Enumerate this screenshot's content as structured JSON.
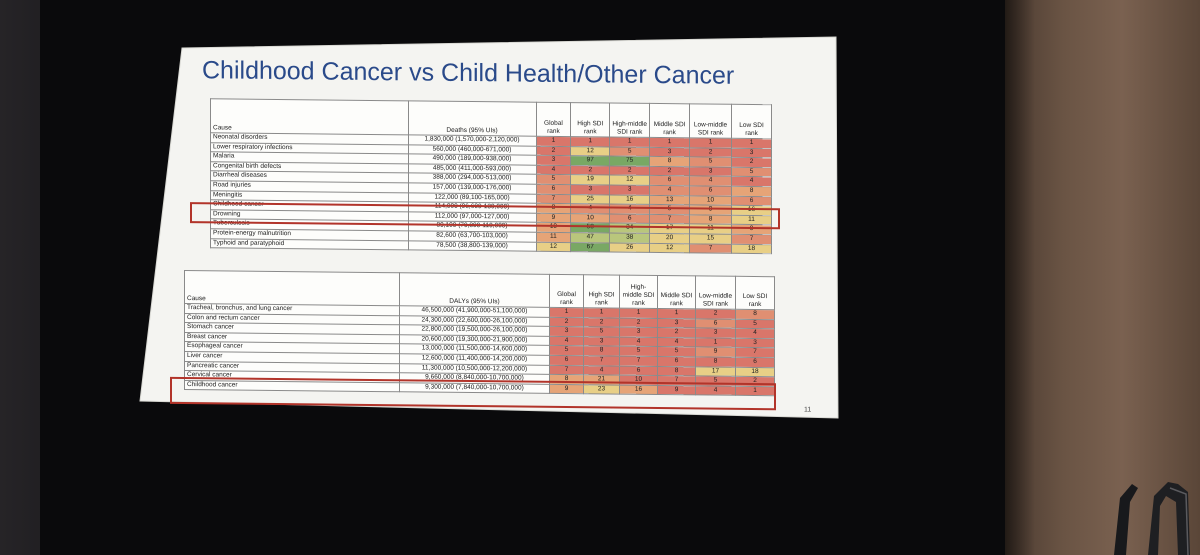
{
  "slide": {
    "title": "Childhood Cancer vs Child Health/Other Cancer",
    "page_number": "11"
  },
  "deaths_table": {
    "headers": [
      "Cause",
      "Deaths (95% UIs)",
      "Global rank",
      "High SDI rank",
      "High-middle SDI rank",
      "Middle SDI rank",
      "Low-middle SDI rank",
      "Low SDI rank"
    ],
    "rows": [
      {
        "cause": "Neonatal disorders",
        "value": "1,830,000 (1,570,000-2,120,000)",
        "ranks": [
          "1",
          "1",
          "1",
          "1",
          "1",
          "1"
        ],
        "colors": [
          "red",
          "red",
          "red",
          "red",
          "red",
          "red"
        ]
      },
      {
        "cause": "Lower respiratory infections",
        "value": "560,000 (460,000-671,000)",
        "ranks": [
          "2",
          "12",
          "5",
          "3",
          "2",
          "3"
        ],
        "colors": [
          "red",
          "yellow",
          "salmon",
          "red",
          "red",
          "red"
        ]
      },
      {
        "cause": "Malaria",
        "value": "490,000 (189,000-938,000)",
        "ranks": [
          "3",
          "97",
          "75",
          "8",
          "5",
          "2"
        ],
        "colors": [
          "red",
          "green",
          "green",
          "orange",
          "salmon",
          "red"
        ]
      },
      {
        "cause": "Congenital birth defects",
        "value": "485,000 (411,000-593,000)",
        "ranks": [
          "4",
          "2",
          "2",
          "2",
          "3",
          "5"
        ],
        "colors": [
          "red",
          "red",
          "red",
          "red",
          "red",
          "salmon"
        ]
      },
      {
        "cause": "Diarrheal diseases",
        "value": "388,000 (294,000-513,000)",
        "ranks": [
          "5",
          "19",
          "12",
          "6",
          "4",
          "4"
        ],
        "colors": [
          "salmon",
          "yellow",
          "yellow",
          "salmon",
          "salmon",
          "red"
        ]
      },
      {
        "cause": "Road injuries",
        "value": "157,000 (139,000-176,000)",
        "ranks": [
          "6",
          "3",
          "3",
          "4",
          "6",
          "8"
        ],
        "colors": [
          "salmon",
          "red",
          "red",
          "salmon",
          "salmon",
          "orange"
        ]
      },
      {
        "cause": "Meningitis",
        "value": "122,000 (89,100-165,000)",
        "ranks": [
          "7",
          "25",
          "16",
          "13",
          "10",
          "6"
        ],
        "colors": [
          "salmon",
          "yellow",
          "yellow",
          "orange",
          "orange",
          "salmon"
        ]
      },
      {
        "cause": "Childhood cancer",
        "value": "114,000 (96,600-130,000)",
        "ranks": [
          "8",
          "4",
          "4",
          "5",
          "9",
          "16"
        ],
        "colors": [
          "orange",
          "salmon",
          "salmon",
          "salmon",
          "orange",
          "yellow"
        ]
      },
      {
        "cause": "Drowning",
        "value": "112,000 (97,000-127,000)",
        "ranks": [
          "9",
          "10",
          "6",
          "7",
          "8",
          "11"
        ],
        "colors": [
          "orange",
          "orange",
          "salmon",
          "salmon",
          "orange",
          "yellow"
        ]
      },
      {
        "cause": "Tuberculosis",
        "value": "89,100 (70,800-110,000)",
        "ranks": [
          "10",
          "58",
          "34",
          "17",
          "11",
          "9"
        ],
        "colors": [
          "orange",
          "green",
          "lgreen",
          "yellow",
          "yellow",
          "orange"
        ]
      },
      {
        "cause": "Protein-energy malnutrition",
        "value": "82,600 (63,700-103,000)",
        "ranks": [
          "11",
          "47",
          "38",
          "20",
          "15",
          "7"
        ],
        "colors": [
          "orange",
          "lgreen",
          "lgreen",
          "yellow",
          "yellow",
          "salmon"
        ]
      },
      {
        "cause": "Typhoid and paratyphoid",
        "value": "78,500 (38,800-139,000)",
        "ranks": [
          "12",
          "67",
          "26",
          "12",
          "7",
          "18"
        ],
        "colors": [
          "yellow",
          "green",
          "yellow",
          "yellow",
          "salmon",
          "yellow"
        ]
      }
    ]
  },
  "dalys_table": {
    "headers": [
      "Cause",
      "DALYs (95% UIs)",
      "Global rank",
      "High SDI rank",
      "High-middle SDI rank",
      "Middle SDI rank",
      "Low-middle SDI rank",
      "Low SDI rank"
    ],
    "rows": [
      {
        "cause": "Tracheal, bronchus, and lung cancer",
        "value": "46,500,000 (41,900,000-51,100,000)",
        "ranks": [
          "1",
          "1",
          "1",
          "1",
          "2",
          "8"
        ],
        "colors": [
          "red",
          "red",
          "red",
          "red",
          "red",
          "salmon"
        ]
      },
      {
        "cause": "Colon and rectum cancer",
        "value": "24,300,000 (22,600,000-26,100,000)",
        "ranks": [
          "2",
          "2",
          "2",
          "3",
          "6",
          "5"
        ],
        "colors": [
          "red",
          "red",
          "red",
          "red",
          "salmon",
          "red"
        ]
      },
      {
        "cause": "Stomach cancer",
        "value": "22,800,000 (19,500,000-26,100,000)",
        "ranks": [
          "3",
          "5",
          "3",
          "2",
          "3",
          "4"
        ],
        "colors": [
          "red",
          "red",
          "red",
          "red",
          "red",
          "red"
        ]
      },
      {
        "cause": "Breast cancer",
        "value": "20,600,000 (19,300,000-21,900,000)",
        "ranks": [
          "4",
          "3",
          "4",
          "4",
          "1",
          "3"
        ],
        "colors": [
          "red",
          "red",
          "red",
          "red",
          "red",
          "red"
        ]
      },
      {
        "cause": "Esophageal cancer",
        "value": "13,000,000 (11,500,000-14,600,000)",
        "ranks": [
          "5",
          "8",
          "5",
          "5",
          "9",
          "7"
        ],
        "colors": [
          "red",
          "red",
          "red",
          "red",
          "salmon",
          "red"
        ]
      },
      {
        "cause": "Liver cancer",
        "value": "12,600,000 (11,400,000-14,200,000)",
        "ranks": [
          "6",
          "7",
          "7",
          "6",
          "8",
          "6"
        ],
        "colors": [
          "red",
          "red",
          "red",
          "red",
          "red",
          "red"
        ]
      },
      {
        "cause": "Pancreatic cancer",
        "value": "11,300,000 (10,500,000-12,200,000)",
        "ranks": [
          "7",
          "4",
          "6",
          "8",
          "17",
          "18"
        ],
        "colors": [
          "red",
          "red",
          "red",
          "red",
          "yellow",
          "yellow"
        ]
      },
      {
        "cause": "Cervical cancer",
        "value": "9,660,000 (8,840,000-10,700,000)",
        "ranks": [
          "8",
          "21",
          "10",
          "7",
          "5",
          "2"
        ],
        "colors": [
          "orange",
          "orange",
          "red",
          "red",
          "red",
          "red"
        ]
      },
      {
        "cause": "Childhood cancer",
        "value": "9,300,000 (7,840,000-10,700,000)",
        "ranks": [
          "9",
          "23",
          "16",
          "9",
          "4",
          "1"
        ],
        "colors": [
          "orange",
          "yellow",
          "orange",
          "red",
          "red",
          "red"
        ]
      }
    ]
  },
  "colors": {
    "red": "#d9766a",
    "salmon": "#e08f72",
    "orange": "#e6a477",
    "yellow": "#e8cf86",
    "lgreen": "#b9c67c",
    "green": "#79a864",
    "highlight": "#b2342a",
    "title": "#2a4a8a"
  }
}
